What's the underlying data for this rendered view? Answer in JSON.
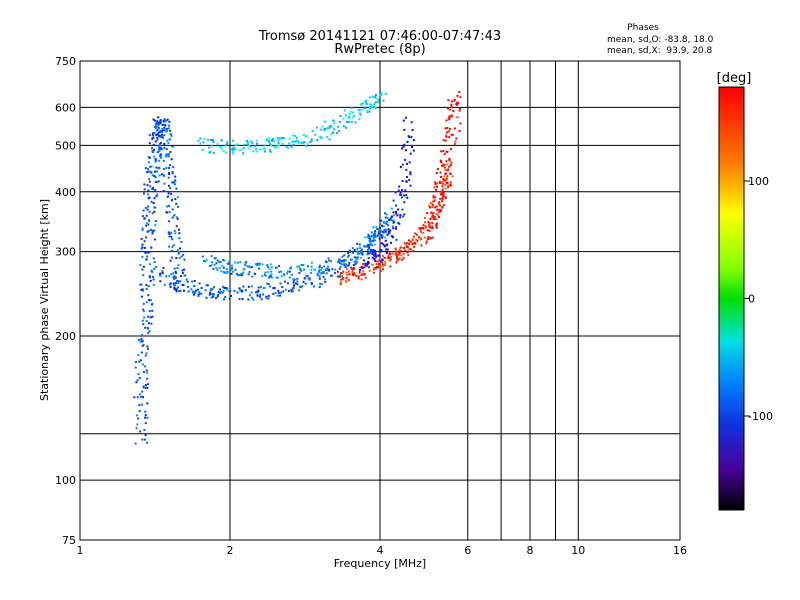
{
  "chart_data": {
    "type": "scatter",
    "title": "Tromsø 20141121 07:46:00-07:47:43",
    "subtitle": "RwPretec (8p)",
    "xlabel": "Frequency [MHz]",
    "ylabel": "Stationary phase Virtual Height [km]",
    "x_scale": "log",
    "y_scale": "log",
    "xlim": [
      1,
      16
    ],
    "ylim": [
      75,
      750
    ],
    "x_ticks": [
      1,
      2,
      4,
      6,
      8,
      10,
      16
    ],
    "x_tick_labels": [
      "1",
      "2",
      "4",
      "6",
      "8",
      "10",
      "16"
    ],
    "x_minor_gridlines": [
      7,
      9
    ],
    "y_ticks": [
      75,
      100,
      200,
      300,
      400,
      500,
      600,
      750
    ],
    "y_tick_labels": [
      "75",
      "100",
      "200",
      "300",
      "400",
      "500",
      "600",
      "750"
    ],
    "y_minor_gridlines": [
      125
    ],
    "grid": true,
    "phase_info": {
      "title": "Phases",
      "line_o": "mean, sd,O: -83.8, 18.0",
      "line_x": "mean, sd,X:  93.9, 20.8"
    },
    "colorbar": {
      "label": "[deg]",
      "range": [
        -180,
        180
      ],
      "ticks": [
        100,
        0,
        -100
      ],
      "tick_labels": [
        "100",
        "0",
        "-100"
      ]
    },
    "traces": [
      {
        "x": [
          1.32,
          1.33,
          1.35,
          1.36,
          1.37,
          1.38,
          1.39,
          1.41,
          1.43,
          1.46,
          1.48,
          1.5,
          1.53,
          1.56,
          1.6
        ],
        "y": [
          120,
          160,
          200,
          250,
          300,
          360,
          420,
          470,
          520,
          560,
          540,
          450,
          380,
          300,
          250
        ],
        "phase": -100
      },
      {
        "x": [
          1.45,
          1.6,
          1.8,
          2.0,
          2.3,
          2.6,
          3.0,
          3.4,
          3.8,
          4.1
        ],
        "y": [
          270,
          255,
          248,
          245,
          246,
          252,
          262,
          280,
          310,
          345
        ],
        "phase": -100
      },
      {
        "x": [
          1.8,
          2.0,
          2.2,
          2.5,
          2.9,
          3.3,
          3.7,
          4.0,
          4.2
        ],
        "y": [
          285,
          278,
          275,
          273,
          275,
          285,
          305,
          330,
          360
        ],
        "phase": -90
      },
      {
        "x": [
          3.3,
          3.6,
          3.9,
          4.2,
          4.5,
          4.8,
          5.1,
          5.3,
          5.5
        ],
        "y": [
          265,
          270,
          280,
          290,
          300,
          320,
          350,
          400,
          450
        ],
        "phase": 110
      },
      {
        "x": [
          3.7,
          4.0,
          4.3,
          4.5,
          4.6
        ],
        "y": [
          280,
          300,
          340,
          420,
          560
        ],
        "phase": -120
      },
      {
        "x": [
          1.75,
          2.0,
          2.3,
          2.6,
          3.0,
          3.4,
          3.8,
          4.0
        ],
        "y": [
          500,
          495,
          497,
          505,
          525,
          560,
          605,
          630
        ],
        "phase": -70
      },
      {
        "x": [
          5.0,
          5.2,
          5.4,
          5.6,
          5.7
        ],
        "y": [
          320,
          380,
          450,
          550,
          640
        ],
        "phase": 120
      }
    ]
  }
}
